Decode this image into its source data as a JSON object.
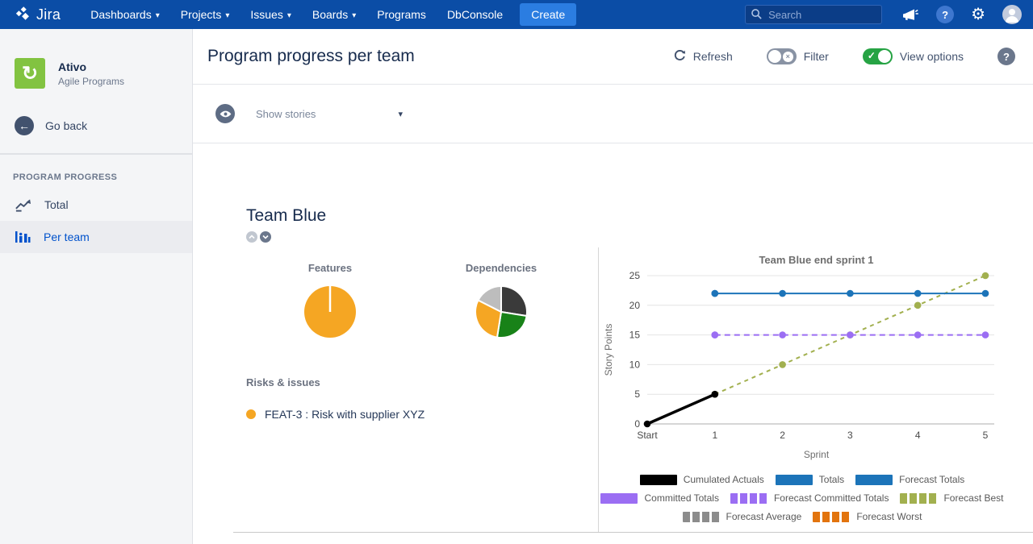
{
  "navbar": {
    "brand": "Jira",
    "items": [
      {
        "label": "Dashboards",
        "caret": true
      },
      {
        "label": "Projects",
        "caret": true
      },
      {
        "label": "Issues",
        "caret": true
      },
      {
        "label": "Boards",
        "caret": true
      },
      {
        "label": "Programs",
        "caret": false
      },
      {
        "label": "DbConsole",
        "caret": false
      }
    ],
    "create_label": "Create",
    "search_placeholder": "Search"
  },
  "sidebar": {
    "app_name": "Ativo",
    "app_subtitle": "Agile Programs",
    "back_label": "Go back",
    "section_title": "PROGRAM PROGRESS",
    "items": [
      {
        "label": "Total",
        "selected": false
      },
      {
        "label": "Per team",
        "selected": true
      }
    ]
  },
  "header": {
    "title": "Program progress per team",
    "refresh_label": "Refresh",
    "filter_label": "Filter",
    "filter_state": "off",
    "view_options_label": "View options",
    "view_options_state": "on"
  },
  "toolbar": {
    "show_stories_label": "Show stories"
  },
  "team": {
    "title": "Team Blue",
    "risks_title": "Risks & issues",
    "risk_items": [
      {
        "text": "FEAT-3 : Risk with supplier XYZ",
        "bullet_color": "#F5A623"
      }
    ]
  },
  "colors": {
    "navbar_bg": "#0B4DA6",
    "accent_blue": "#0052CC",
    "toggle_green": "#26A344",
    "toggle_gray": "#8993A4"
  },
  "chart_data": [
    {
      "type": "pie",
      "title": "Features",
      "slices": [
        {
          "value": 100,
          "color": "#F5A623"
        }
      ]
    },
    {
      "type": "pie",
      "title": "Dependencies",
      "slices": [
        {
          "value": 27.5,
          "color": "#3A3A3A"
        },
        {
          "value": 25,
          "color": "#188218"
        },
        {
          "value": 30,
          "color": "#F5A623"
        },
        {
          "value": 17.5,
          "color": "#BDBDBD"
        }
      ]
    },
    {
      "type": "line",
      "title": "Team Blue end sprint 1",
      "xlabel": "Sprint",
      "ylabel": "Story Points",
      "x_categories": [
        "Start",
        "1",
        "2",
        "3",
        "4",
        "5"
      ],
      "ylim": [
        0,
        25
      ],
      "yticks": [
        0,
        5,
        10,
        15,
        20,
        25
      ],
      "grid": true,
      "legend_position": "bottom",
      "series": [
        {
          "name": "Forecast Best",
          "color": "#A2B04F",
          "dashed": true,
          "dash": "5,5",
          "width": 2,
          "points": [
            [
              1,
              5
            ],
            [
              2,
              10
            ],
            [
              3,
              15
            ],
            [
              4,
              20
            ],
            [
              5,
              25
            ]
          ]
        },
        {
          "name": "Forecast Committed Totals",
          "color": "#9B6EF3",
          "dashed": true,
          "dash": "7,5",
          "width": 2,
          "points": [
            [
              1,
              15
            ],
            [
              2,
              15
            ],
            [
              3,
              15
            ],
            [
              4,
              15
            ],
            [
              5,
              15
            ]
          ]
        },
        {
          "name": "Committed Totals",
          "color": "#9B6EF3",
          "dashed": false,
          "width": 2,
          "points": [
            [
              1,
              15
            ]
          ]
        },
        {
          "name": "Forecast Totals",
          "color": "#1C74B9",
          "dashed": false,
          "width": 2,
          "points": [
            [
              1,
              22
            ],
            [
              2,
              22
            ],
            [
              3,
              22
            ],
            [
              4,
              22
            ],
            [
              5,
              22
            ]
          ]
        },
        {
          "name": "Totals",
          "color": "#1C74B9",
          "dashed": false,
          "width": 2,
          "points": [
            [
              1,
              22
            ]
          ]
        },
        {
          "name": "Cumulated Actuals",
          "color": "#000000",
          "dashed": false,
          "width": 3.5,
          "points": [
            [
              0,
              0
            ],
            [
              1,
              5
            ]
          ]
        },
        {
          "name": "Forecast Average",
          "color": "#8C8C8C",
          "dashed": true,
          "dash": "5,5",
          "width": 2,
          "points": []
        },
        {
          "name": "Forecast Worst",
          "color": "#E2740E",
          "dashed": true,
          "dash": "5,5",
          "width": 2,
          "points": []
        }
      ],
      "legend": [
        {
          "label": "Cumulated Actuals",
          "color": "#000000",
          "dashed": false
        },
        {
          "label": "Totals",
          "color": "#1C74B9",
          "dashed": false
        },
        {
          "label": "Forecast Totals",
          "color": "#1C74B9",
          "dashed": false
        },
        {
          "label": "Committed Totals",
          "color": "#9B6EF3",
          "dashed": false
        },
        {
          "label": "Forecast Committed Totals",
          "color": "#9B6EF3",
          "dashed": true
        },
        {
          "label": "Forecast Best",
          "color": "#A2B04F",
          "dashed": true
        },
        {
          "label": "Forecast Average",
          "color": "#8C8C8C",
          "dashed": true
        },
        {
          "label": "Forecast Worst",
          "color": "#E2740E",
          "dashed": true
        }
      ]
    }
  ]
}
